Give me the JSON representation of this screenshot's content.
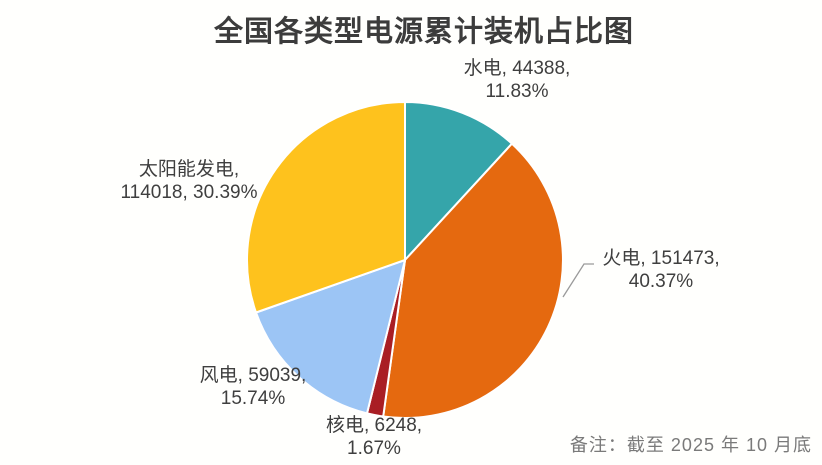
{
  "chart_data": {
    "type": "pie",
    "title": "全国各类型电源累计装机占比图",
    "legend_position": "none",
    "label_format": "category, value, percent",
    "slices": [
      {
        "id": "hydro",
        "name": "水电",
        "value": 44388,
        "pct": 11.83,
        "color": "#35A5AA",
        "label_lines": [
          "水电, 44388,",
          "11.83%"
        ]
      },
      {
        "id": "thermal",
        "name": "火电",
        "value": 151473,
        "pct": 40.37,
        "color": "#E5690F",
        "label_lines": [
          "火电, 151473,",
          "40.37%"
        ]
      },
      {
        "id": "nuclear",
        "name": "核电",
        "value": 6248,
        "pct": 1.67,
        "color": "#A91E24",
        "label_lines": [
          "核电, 6248,",
          "1.67%"
        ]
      },
      {
        "id": "wind",
        "name": "风电",
        "value": 59039,
        "pct": 15.74,
        "color": "#9CC5F5",
        "label_lines": [
          "风电, 59039,",
          "15.74%"
        ]
      },
      {
        "id": "solar",
        "name": "太阳能发电",
        "value": 114018,
        "pct": 30.39,
        "color": "#FEC21D",
        "label_lines": [
          "太阳能发电,",
          "114018, 30.39%"
        ]
      }
    ]
  },
  "note": {
    "text": "备注：截至 2025 年 10 月底"
  },
  "style": {
    "slice_border_color": "#ffffff",
    "leader_line_color": "#9a9a9a",
    "title_color": "#3c3c3c",
    "label_color": "#3f3f3f",
    "note_color": "#7a7a7a"
  }
}
